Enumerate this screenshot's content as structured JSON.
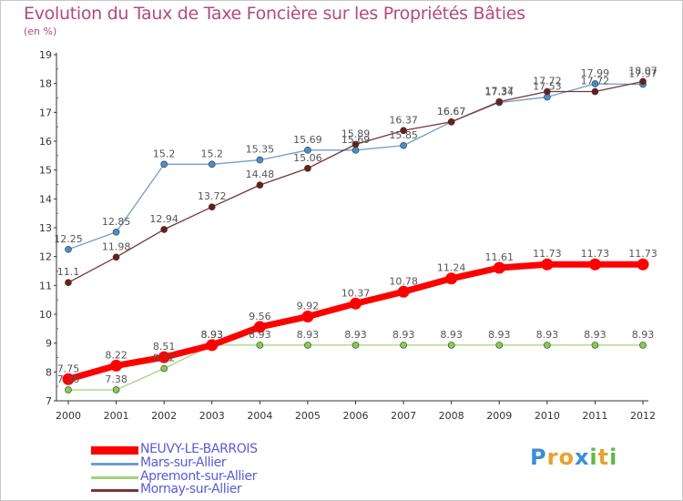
{
  "title": "Evolution du Taux de Taxe Foncière sur les Propriétés Bâties",
  "unit": "(en %)",
  "logo": {
    "letters": [
      "P",
      "r",
      "o",
      "x",
      "i",
      "t",
      "i"
    ],
    "colors": [
      "#3a8fd6",
      "#e8a22c",
      "#e8a22c",
      "#3a8fd6",
      "#62b845",
      "#e8a22c",
      "#62b845"
    ]
  },
  "chart_data": {
    "type": "line",
    "x": [
      "2000",
      "2001",
      "2002",
      "2003",
      "2004",
      "2005",
      "2006",
      "2007",
      "2008",
      "2009",
      "2010",
      "2011",
      "2012"
    ],
    "ylim": [
      7,
      19
    ],
    "yticks": [
      "7",
      "8",
      "9",
      "10",
      "11",
      "12",
      "13",
      "14",
      "15",
      "16",
      "17",
      "18",
      "19"
    ],
    "grid": false,
    "series": [
      {
        "name": "NEUVY-LE-BARROIS",
        "color": "#ff0000",
        "labels": [
          "7.75",
          "8.22",
          "8.51",
          "8.93",
          "9.56",
          "9.92",
          "10.37",
          "10.78",
          "11.24",
          "11.61",
          "11.73",
          "11.73",
          "11.73"
        ],
        "values": [
          7.75,
          8.22,
          8.51,
          8.93,
          9.56,
          9.92,
          10.37,
          10.78,
          11.24,
          11.61,
          11.73,
          11.73,
          11.73
        ]
      },
      {
        "name": "Mars-sur-Allier",
        "color": "#6fa0c8",
        "labels": [
          "12.25",
          "12.85",
          "15.2",
          "15.2",
          "15.35",
          "15.69",
          "15.69",
          "15.85",
          "16.67",
          "17.34",
          "17.53",
          "17.99",
          "17.97"
        ],
        "values": [
          12.25,
          12.85,
          15.2,
          15.2,
          15.35,
          15.69,
          15.69,
          15.85,
          16.67,
          17.34,
          17.53,
          17.99,
          17.97
        ]
      },
      {
        "name": "Apremont-sur-Allier",
        "color": "#9fd37a",
        "labels": [
          "7.38",
          "7.38",
          "8.12",
          "8.93",
          "8.93",
          "8.93",
          "8.93",
          "8.93",
          "8.93",
          "8.93",
          "8.93",
          "8.93",
          "8.93"
        ],
        "values": [
          7.38,
          7.38,
          8.12,
          8.93,
          8.93,
          8.93,
          8.93,
          8.93,
          8.93,
          8.93,
          8.93,
          8.93,
          8.93
        ]
      },
      {
        "name": "Mornay-sur-Allier",
        "color": "#7a3535",
        "labels": [
          "11.1",
          "11.98",
          "12.94",
          "13.72",
          "14.48",
          "15.06",
          "15.89",
          "16.37",
          "16.67",
          "17.37",
          "17.72",
          "17.72",
          "18.07"
        ],
        "values": [
          11.1,
          11.98,
          12.94,
          13.72,
          14.48,
          15.06,
          15.89,
          16.37,
          16.67,
          17.37,
          17.72,
          17.72,
          18.07
        ]
      }
    ]
  }
}
